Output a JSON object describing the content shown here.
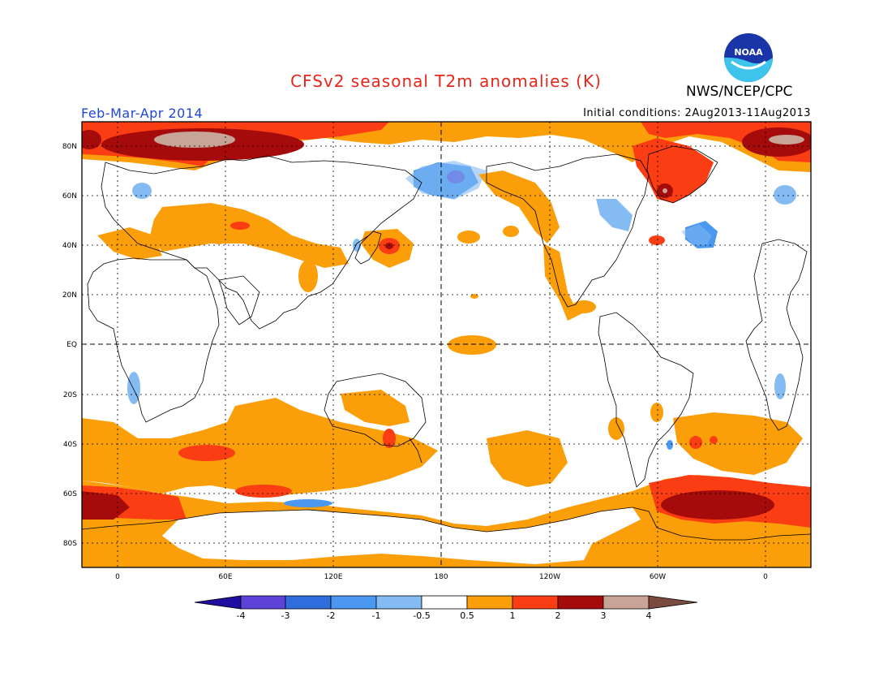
{
  "header": {
    "title": "CFSv2 seasonal T2m anomalies (K)",
    "agency": "NWS/NCEP/CPC",
    "season": "Feb-Mar-Apr 2014",
    "initial_conditions": "Initial conditions: 2Aug2013-11Aug2013",
    "logo_text": "NOAA"
  },
  "axes": {
    "lat_labels": [
      "80N",
      "60N",
      "40N",
      "20N",
      "EQ",
      "20S",
      "40S",
      "60S",
      "80S"
    ],
    "lon_labels": [
      "0",
      "60E",
      "120E",
      "180",
      "120W",
      "60W",
      "0"
    ]
  },
  "colorbar": {
    "tick_labels": [
      "-4",
      "-3",
      "-2",
      "-1",
      "-0.5",
      "0.5",
      "1",
      "2",
      "3",
      "4"
    ],
    "colors": [
      "#1e0fa0",
      "#5e43d8",
      "#2f6cdc",
      "#4a98ef",
      "#84bbf3",
      "#ffffff",
      "#fa9e0a",
      "#fb3d14",
      "#a60b0b",
      "#c8a497",
      "#7a4a3e"
    ]
  }
}
